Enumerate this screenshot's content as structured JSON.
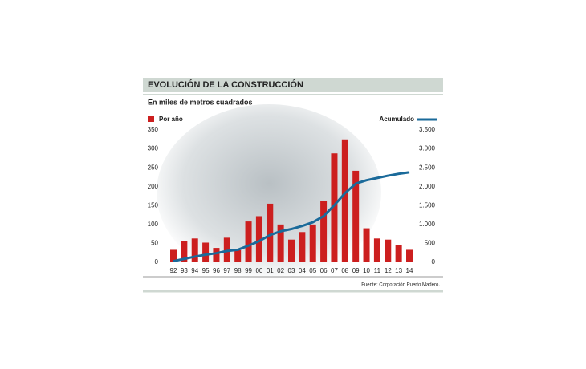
{
  "chart_data": {
    "type": "bar-line",
    "title": "EVOLUCIÓN DE LA CONSTRUCCIÓN",
    "subtitle": "En miles de metros cuadrados",
    "source": "Fuente: Corporación Puerto Madero.",
    "categories": [
      "92",
      "93",
      "94",
      "95",
      "96",
      "97",
      "98",
      "99",
      "00",
      "01",
      "02",
      "03",
      "04",
      "05",
      "06",
      "07",
      "08",
      "09",
      "10",
      "11",
      "12",
      "13",
      "14"
    ],
    "series": [
      {
        "name": "Por año",
        "color": "#cc1f1f",
        "type": "bar",
        "values": [
          33,
          57,
          63,
          52,
          38,
          65,
          32,
          108,
          122,
          155,
          100,
          60,
          80,
          100,
          163,
          288,
          325,
          242,
          90,
          63,
          60,
          45,
          33
        ]
      },
      {
        "name": "Acumulado",
        "color": "#1a6a9a",
        "type": "line",
        "axis": "y2",
        "values": [
          30,
          90,
          150,
          200,
          240,
          300,
          330,
          440,
          560,
          720,
          820,
          880,
          960,
          1060,
          1220,
          1510,
          1830,
          2080,
          2170,
          2230,
          2290,
          2340,
          2380
        ]
      }
    ],
    "ylim": [
      0,
      350
    ],
    "yticks": [
      0,
      50,
      100,
      150,
      200,
      250,
      300,
      350
    ],
    "y2lim": [
      0,
      3500
    ],
    "y2ticks": [
      0,
      500,
      {
        "value": 1000,
        "label": "1.000"
      },
      {
        "value": 1500,
        "label": "1.500"
      },
      {
        "value": 2000,
        "label": "2.000"
      },
      {
        "value": 2500,
        "label": "2.500"
      },
      {
        "value": 3000,
        "label": "3.000"
      },
      {
        "value": 3500,
        "label": "3.500"
      }
    ]
  }
}
